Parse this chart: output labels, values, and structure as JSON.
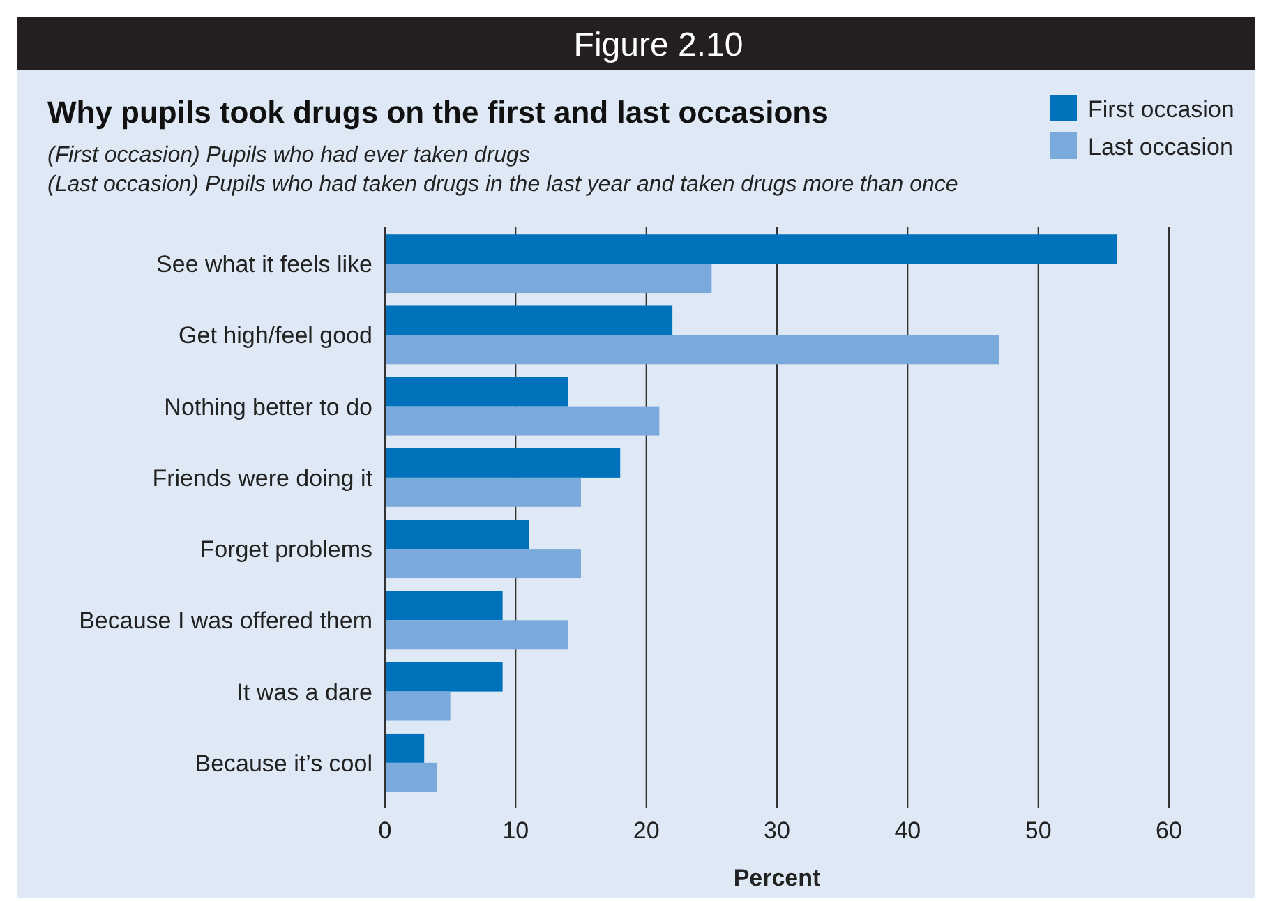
{
  "chart_data": {
    "type": "bar",
    "orientation": "horizontal",
    "title": "Why pupils took drugs on the first and last occasions",
    "subtitle": "(First occasion) Pupils who had ever taken drugs\n(Last occasion) Pupils who had taken drugs in the last year and taken drugs more than once",
    "annotations": [
      "Figure 2.10"
    ],
    "xlabel": "Percent",
    "categories": [
      "See what it feels like",
      "Get high/feel good",
      "Nothing better to  do",
      "Friends were doing it",
      "Forget problems",
      "Because I was offered them",
      "It was a dare",
      "Because it’s cool"
    ],
    "series": [
      {
        "name": "First occasion",
        "color": "#0072bc",
        "values": [
          56,
          22,
          14,
          18,
          11,
          9,
          9,
          3
        ]
      },
      {
        "name": "Last occasion",
        "color": "#7aaadb",
        "values": [
          25,
          47,
          21,
          15,
          15,
          14,
          5,
          4
        ]
      }
    ],
    "xlim": [
      0,
      60
    ],
    "xticks": [
      0,
      10,
      20,
      30,
      40,
      50,
      60
    ],
    "grid": "x",
    "legend": "top right"
  }
}
